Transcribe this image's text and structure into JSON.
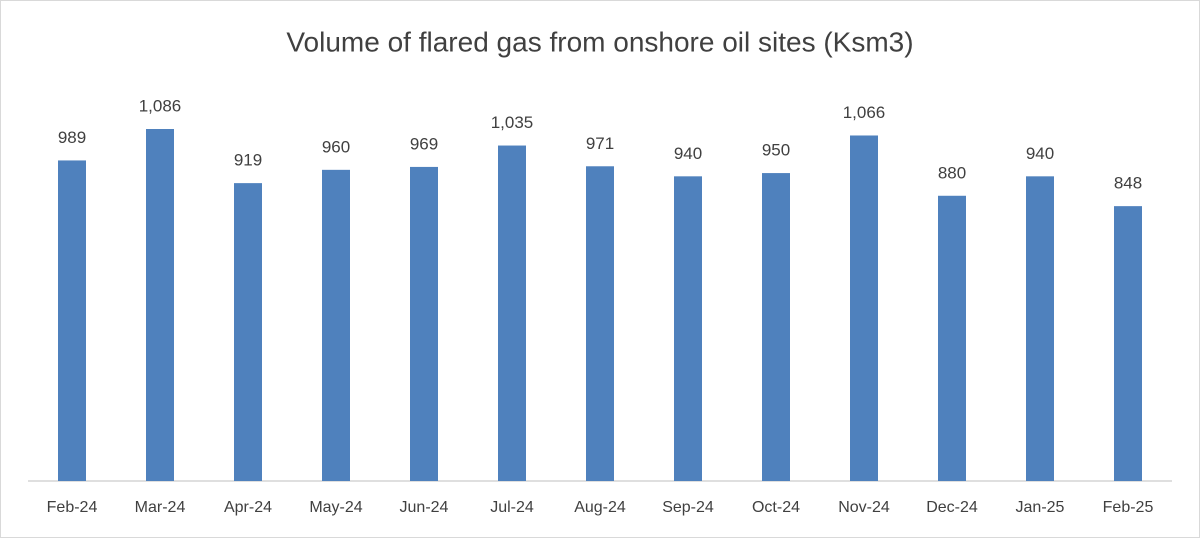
{
  "chart_data": {
    "type": "bar",
    "title": "Volume of flared gas from onshore oil sites (Ksm3)",
    "categories": [
      "Feb-24",
      "Mar-24",
      "Apr-24",
      "May-24",
      "Jun-24",
      "Jul-24",
      "Aug-24",
      "Sep-24",
      "Oct-24",
      "Nov-24",
      "Dec-24",
      "Jan-25",
      "Feb-25"
    ],
    "values": [
      989,
      1086,
      919,
      960,
      969,
      1035,
      971,
      940,
      950,
      1066,
      880,
      940,
      848
    ],
    "value_labels": [
      "989",
      "1,086",
      "919",
      "960",
      "969",
      "1,035",
      "971",
      "940",
      "950",
      "1,066",
      "880",
      "940",
      "848"
    ],
    "color": "#4f81bd"
  }
}
